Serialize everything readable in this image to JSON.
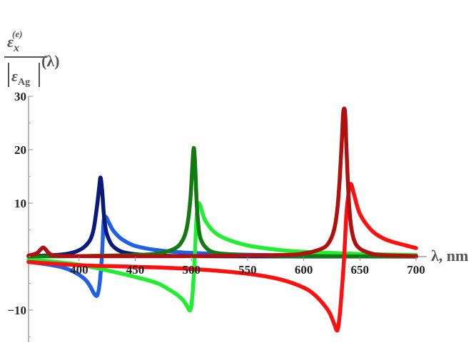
{
  "chart_data": {
    "type": "line",
    "xlabel": "λ, nm",
    "ylabel": {
      "numerator_symbol": "ε",
      "numerator_sub": "x",
      "numerator_sup": "(e)",
      "denominator_symbol": "ε",
      "denominator_sub": "Ag",
      "suffix": "(λ)"
    },
    "xlim": [
      355,
      700
    ],
    "ylim": [
      -16,
      30
    ],
    "x_ticks": [
      400,
      450,
      500,
      550,
      600,
      650,
      700
    ],
    "x_tick_labels": [
      "400",
      "450",
      "500",
      "550",
      "600",
      "650",
      "700"
    ],
    "y_ticks": [
      -10,
      10,
      20,
      30
    ],
    "y_tick_labels": [
      "−10",
      "10",
      "20",
      "30"
    ],
    "grid": false,
    "legend": "none",
    "series": [
      {
        "color": "#2060e8",
        "x": [
          355,
          370,
          385,
          395,
          405,
          410,
          413,
          416,
          418,
          420,
          421,
          422,
          424,
          426,
          430,
          435,
          440,
          450,
          470,
          500,
          550,
          600,
          650,
          700
        ],
        "y": [
          -1.0,
          -1.4,
          -2.0,
          -2.8,
          -4.2,
          -5.6,
          -6.8,
          -7.3,
          -5.5,
          -1.0,
          3.0,
          7.0,
          7.4,
          6.6,
          5.0,
          3.8,
          3.0,
          2.0,
          1.2,
          0.7,
          0.35,
          0.2,
          0.12,
          0.08
        ]
      },
      {
        "color": "#0a1a7a",
        "x": [
          355,
          370,
          385,
          395,
          400,
          405,
          410,
          413,
          416,
          418,
          419,
          420,
          421,
          422,
          424,
          427,
          430,
          435,
          440,
          450,
          470,
          500,
          550,
          700
        ],
        "y": [
          0.1,
          0.2,
          0.4,
          0.8,
          1.2,
          1.9,
          3.2,
          5.2,
          9.5,
          13.2,
          14.8,
          13.5,
          11.0,
          8.0,
          4.8,
          3.0,
          2.0,
          1.2,
          0.8,
          0.45,
          0.2,
          0.1,
          0.05,
          0.02
        ]
      },
      {
        "color": "#20ee30",
        "x": [
          355,
          370,
          400,
          430,
          450,
          470,
          485,
          492,
          496,
          499,
          501,
          503,
          504,
          505,
          506,
          508,
          510,
          513,
          520,
          530,
          550,
          580,
          600,
          650,
          700
        ],
        "y": [
          -0.6,
          -0.8,
          -1.5,
          -2.8,
          -3.8,
          -5.0,
          -6.8,
          -8.0,
          -9.2,
          -10.0,
          -7.0,
          0.0,
          5.0,
          8.5,
          10.0,
          9.5,
          8.0,
          6.5,
          4.7,
          3.4,
          2.1,
          1.2,
          0.9,
          0.5,
          0.3
        ]
      },
      {
        "color": "#137a13",
        "x": [
          355,
          400,
          450,
          470,
          485,
          492,
          496,
          499,
          501,
          502,
          503,
          504,
          505,
          507,
          510,
          515,
          520,
          530,
          550,
          600,
          650,
          700
        ],
        "y": [
          0.05,
          0.1,
          0.3,
          0.6,
          1.5,
          3.0,
          5.5,
          10.5,
          17.5,
          20.3,
          18.5,
          13.5,
          9.0,
          4.5,
          2.5,
          1.3,
          0.8,
          0.5,
          0.25,
          0.1,
          0.05,
          0.03
        ]
      },
      {
        "color": "#ff1010",
        "x": [
          355,
          400,
          450,
          500,
          550,
          580,
          600,
          610,
          618,
          623,
          627,
          630,
          632,
          634,
          636,
          638,
          640,
          642,
          645,
          650,
          660,
          670,
          680,
          700
        ],
        "y": [
          -1.0,
          -1.6,
          -1.9,
          -2.3,
          -3.2,
          -4.3,
          -5.8,
          -7.2,
          -9.0,
          -10.5,
          -12.5,
          -13.8,
          -11.0,
          -6.0,
          0.0,
          8.0,
          12.0,
          13.6,
          11.5,
          8.0,
          5.0,
          3.5,
          2.7,
          1.6
        ]
      },
      {
        "color": "#b01010",
        "x": [
          355,
          362,
          366,
          368,
          370,
          374,
          380,
          400,
          500,
          580,
          600,
          615,
          622,
          627,
          630,
          632,
          634,
          635,
          636,
          637,
          638,
          640,
          642,
          645,
          650,
          660,
          670,
          700
        ],
        "y": [
          0.2,
          0.6,
          1.4,
          1.7,
          1.4,
          0.5,
          0.2,
          0.1,
          0.1,
          0.3,
          0.6,
          1.4,
          2.5,
          5.0,
          9.0,
          14.5,
          22.0,
          26.5,
          27.7,
          26.5,
          20.5,
          11.0,
          6.0,
          3.0,
          1.5,
          0.6,
          0.3,
          0.1
        ]
      }
    ]
  }
}
